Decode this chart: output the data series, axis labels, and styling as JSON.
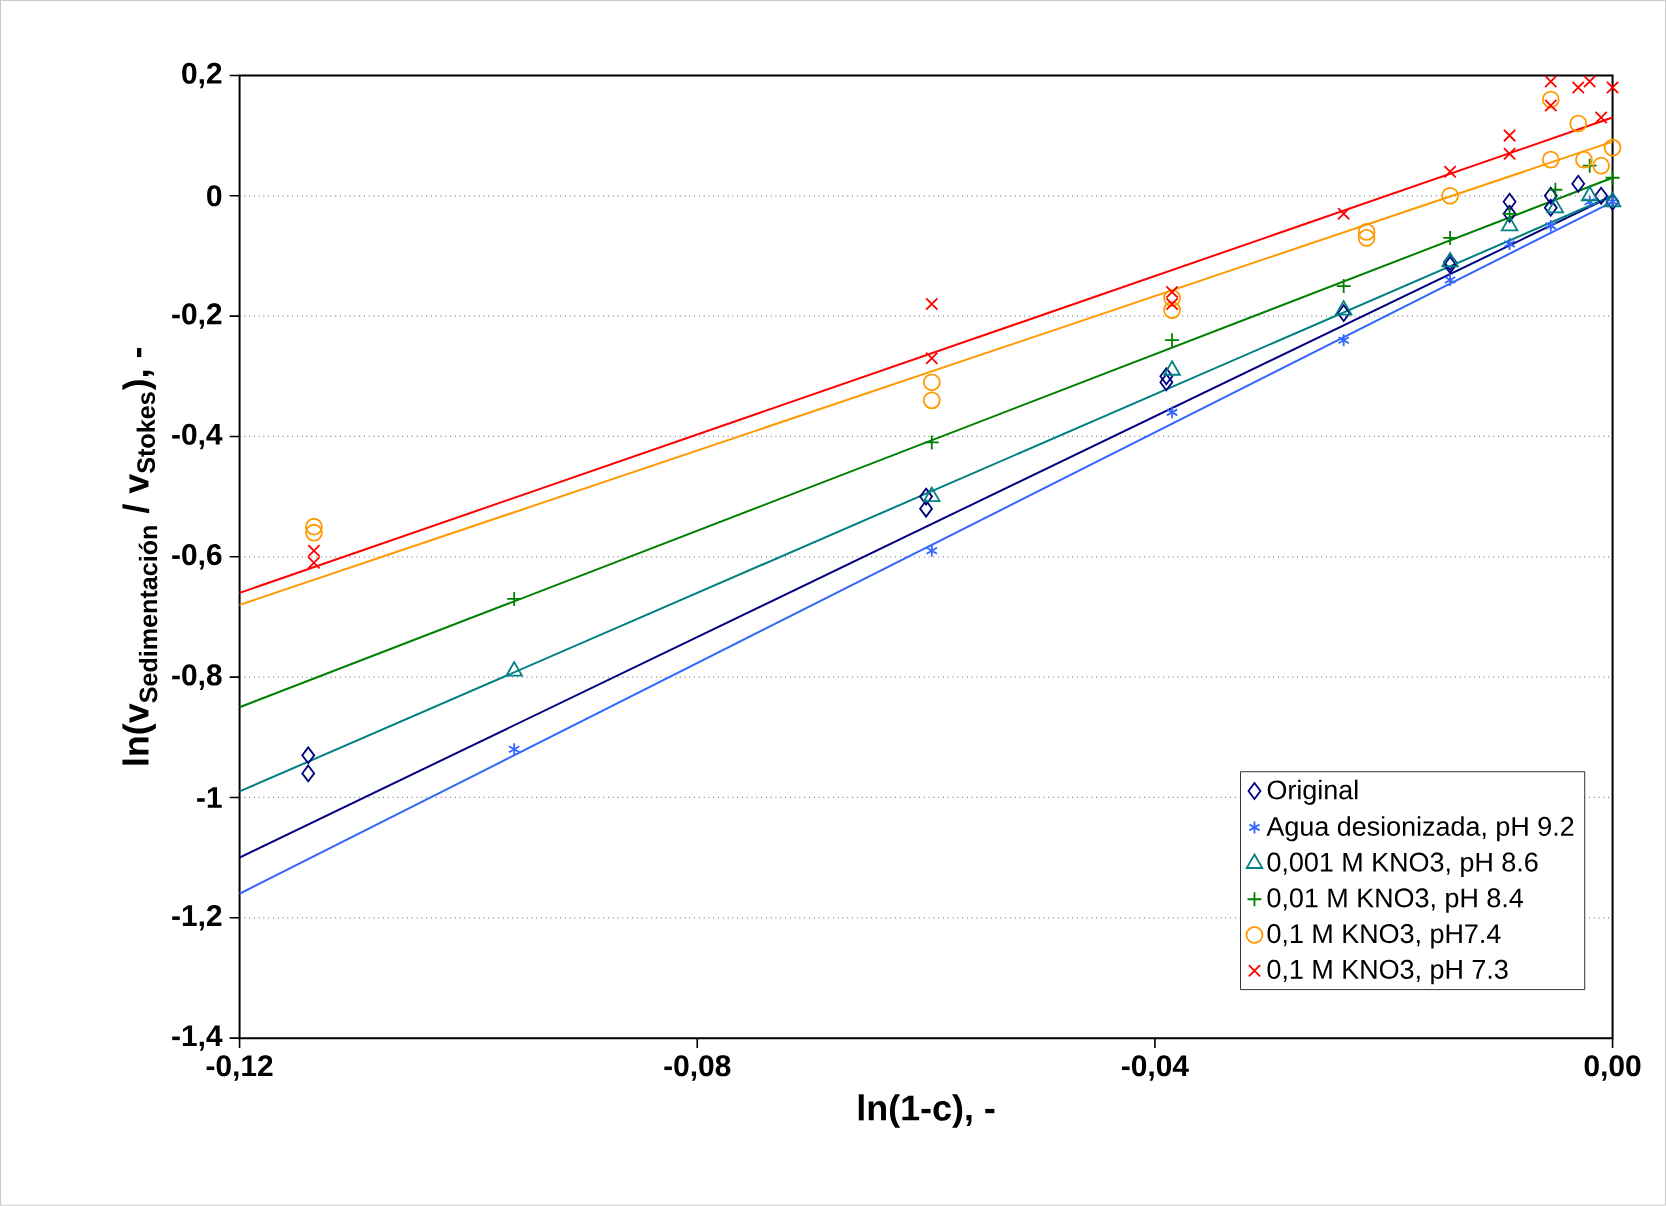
{
  "chart_data": {
    "type": "scatter",
    "xlabel": "ln(1-c), -",
    "ylabel": "\\text{\\textbf{ln(v}}_{\\text{\\textbf{Sedimentación}}}\\text{\\textbf{ / v}}_{\\text{\\textbf{Stokes}}}\\text{\\textbf{), -}}",
    "xlim": [
      -0.12,
      0.0
    ],
    "xticks": [
      {
        "value": -0.12,
        "label": "-0,12"
      },
      {
        "value": -0.08,
        "label": "-0,08"
      },
      {
        "value": -0.04,
        "label": "-0,04"
      },
      {
        "value": 0.0,
        "label": "0,00"
      }
    ],
    "ylim": [
      -1.4,
      0.2
    ],
    "yticks": [
      {
        "value": -1.4,
        "label": "-1,4"
      },
      {
        "value": -1.2,
        "label": "-1,2"
      },
      -1,
      {
        "value": -0.8,
        "label": "-0,8"
      },
      {
        "value": -0.6,
        "label": "-0,6"
      },
      {
        "value": -0.4,
        "label": "-0,4"
      },
      {
        "value": -0.2,
        "label": "-0,2"
      },
      0,
      {
        "value": 0.2,
        "label": "0,2"
      }
    ],
    "grid": "y",
    "legend": "bottom right",
    "series": [
      {
        "name": "Original",
        "color": "#000080",
        "marker": "diamond",
        "x": [
          -0.114,
          -0.114,
          -0.06,
          -0.06,
          -0.039,
          -0.039,
          -0.0235,
          -0.0142,
          -0.0142,
          -0.009,
          -0.009,
          -0.0054,
          -0.0054,
          -0.003,
          -0.001,
          0.0
        ],
        "values": [
          -0.93,
          -0.96,
          -0.5,
          -0.52,
          -0.3,
          -0.31,
          -0.195,
          -0.11,
          -0.115,
          -0.01,
          -0.03,
          0.0,
          -0.02,
          0.02,
          0.0,
          -0.01
        ]
      },
      {
        "name": "Agua desionizada, pH 9.2",
        "color": "#3366ff",
        "x": [
          -0.096,
          -0.0595,
          -0.0385,
          -0.0235,
          -0.0142,
          -0.009,
          -0.0054,
          -0.002,
          0.0
        ],
        "values": [
          -0.92,
          -0.59,
          -0.36,
          -0.24,
          -0.14,
          -0.08,
          -0.05,
          -0.01,
          -0.01
        ]
      },
      {
        "name": "0,001 M KNO3, pH 8.6",
        "color": "#008080",
        "marker": "triangle",
        "x": [
          -0.096,
          -0.0595,
          -0.0385,
          -0.0235,
          -0.0142,
          -0.009,
          -0.005,
          -0.002,
          0.0
        ],
        "values": [
          -0.79,
          -0.5,
          -0.29,
          -0.19,
          -0.11,
          -0.05,
          -0.02,
          0.0,
          -0.01
        ]
      },
      {
        "name": "0,01 M KNO3, pH 8.4",
        "color": "#008000",
        "marker": "plus",
        "x": [
          -0.096,
          -0.0595,
          -0.0385,
          -0.0235,
          -0.0142,
          -0.009,
          -0.005,
          -0.002,
          0.0
        ],
        "values": [
          -0.67,
          -0.41,
          -0.24,
          -0.15,
          -0.07,
          -0.03,
          0.01,
          0.05,
          0.03
        ]
      },
      {
        "name": "0,1 M KNO3, pH7.4",
        "color": "#ff9900",
        "marker": "circle",
        "x": [
          -0.1135,
          -0.1135,
          -0.0595,
          -0.0595,
          -0.0385,
          -0.0385,
          -0.0215,
          -0.0215,
          -0.0142,
          -0.0054,
          -0.0054,
          -0.003,
          -0.0025,
          -0.001,
          0.0
        ],
        "values": [
          -0.55,
          -0.56,
          -0.31,
          -0.34,
          -0.17,
          -0.19,
          -0.06,
          -0.07,
          0.0,
          0.16,
          0.06,
          0.12,
          0.06,
          0.05,
          0.08
        ]
      },
      {
        "name": "0,1 M KNO3, pH 7.3",
        "color": "#ff0000",
        "marker": "cross",
        "x": [
          -0.1135,
          -0.1135,
          -0.0595,
          -0.0595,
          -0.0385,
          -0.0385,
          -0.0235,
          -0.0142,
          -0.009,
          -0.009,
          -0.0054,
          -0.0054,
          -0.003,
          -0.002,
          -0.001,
          0.0
        ],
        "values": [
          -0.59,
          -0.61,
          -0.18,
          -0.27,
          -0.16,
          -0.18,
          -0.03,
          0.04,
          0.1,
          0.07,
          0.19,
          0.15,
          0.18,
          0.19,
          0.13,
          0.18
        ]
      },
      {
        "type": "line",
        "color": "#000080",
        "x": [
          -0.12,
          0.0
        ],
        "values": [
          -1.1,
          0.0
        ]
      },
      {
        "type": "line",
        "color": "#3366ff",
        "x": [
          -0.12,
          0.0
        ],
        "values": [
          -1.16,
          -0.01
        ]
      },
      {
        "type": "line",
        "color": "#008080",
        "x": [
          -0.12,
          0.0
        ],
        "values": [
          -0.99,
          0.0
        ]
      },
      {
        "type": "line",
        "color": "#008000",
        "x": [
          -0.12,
          0.0
        ],
        "values": [
          -0.85,
          0.03
        ]
      },
      {
        "type": "line",
        "color": "#ff9900",
        "x": [
          -0.12,
          0.0
        ],
        "values": [
          -0.68,
          0.09
        ]
      },
      {
        "type": "line",
        "color": "#ff0000",
        "x": [
          -0.12,
          0.0
        ],
        "values": [
          -0.66,
          0.13
        ]
      }
    ]
  }
}
